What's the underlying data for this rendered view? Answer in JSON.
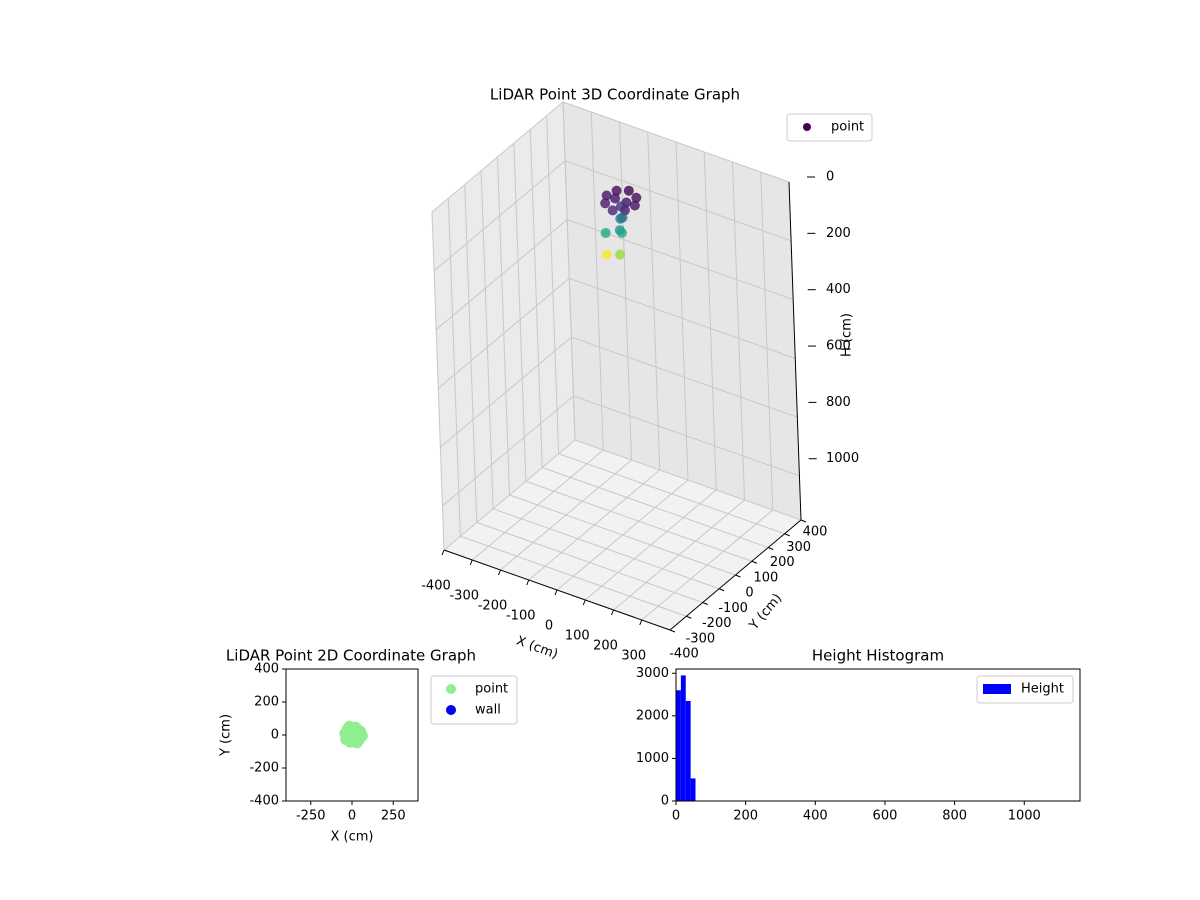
{
  "chart_data": [
    {
      "type": "scatter3d",
      "title": "LiDAR Point 3D Coordinate Graph",
      "xlabel": "X (cm)",
      "ylabel": "Y (cm)",
      "zlabel": "H (cm)",
      "xlim": [
        -400,
        400
      ],
      "ylim": [
        -400,
        400
      ],
      "zlim": [
        0,
        1150
      ],
      "z_inverted": true,
      "xticks": [
        -400,
        -300,
        -200,
        -100,
        0,
        100,
        200,
        300
      ],
      "yticks": [
        -400,
        -300,
        -200,
        -100,
        0,
        100,
        200,
        300,
        400
      ],
      "zticks": [
        0,
        200,
        400,
        600,
        800,
        1000
      ],
      "colormap": "viridis",
      "grid": true,
      "legend": "upper right",
      "series": [
        {
          "name": "point",
          "x": [
            -50,
            -35,
            0,
            35,
            50,
            35,
            0,
            -35,
            -20,
            20,
            0,
            10,
            -10,
            5,
            0,
            -40,
            -45,
            15
          ],
          "y": [
            60,
            95,
            110,
            95,
            60,
            25,
            10,
            25,
            60,
            60,
            60,
            50,
            70,
            40,
            60,
            30,
            40,
            20
          ],
          "z": [
            40,
            35,
            30,
            35,
            40,
            45,
            50,
            45,
            40,
            40,
            60,
            90,
            110,
            130,
            150,
            150,
            230,
            200
          ]
        }
      ]
    },
    {
      "type": "scatter",
      "title": "LiDAR Point 2D Coordinate Graph",
      "xlabel": "X (cm)",
      "ylabel": "Y (cm)",
      "xlim": [
        -400,
        400
      ],
      "ylim": [
        -400,
        400
      ],
      "xticks": [
        -250,
        0,
        250
      ],
      "yticks": [
        -400,
        -200,
        0,
        200,
        400
      ],
      "legend": "outside right",
      "series": [
        {
          "name": "point",
          "color": "#90ee90",
          "x": [
            0,
            20,
            -20,
            35,
            -35,
            10,
            -10,
            45,
            -40,
            25,
            -25,
            5,
            50,
            60,
            30,
            -15,
            15,
            -30,
            40,
            20
          ],
          "y": [
            0,
            15,
            -10,
            30,
            -25,
            40,
            -40,
            -5,
            10,
            -35,
            35,
            -20,
            20,
            -5,
            -45,
            50,
            25,
            5,
            -30,
            45
          ]
        },
        {
          "name": "wall",
          "color": "#0000ff",
          "x": [],
          "y": []
        }
      ]
    },
    {
      "type": "histogram",
      "title": "Height Histogram",
      "name": "Height",
      "color": "#0000ff",
      "bins": [
        0,
        14,
        28,
        42,
        56
      ],
      "values": [
        2600,
        2950,
        2350,
        530
      ],
      "xlim": [
        0,
        1160
      ],
      "ylim": [
        0,
        3100
      ],
      "xticks": [
        0,
        200,
        400,
        600,
        800,
        1000
      ],
      "yticks": [
        0,
        1000,
        2000,
        3000
      ],
      "legend": "upper right"
    }
  ]
}
